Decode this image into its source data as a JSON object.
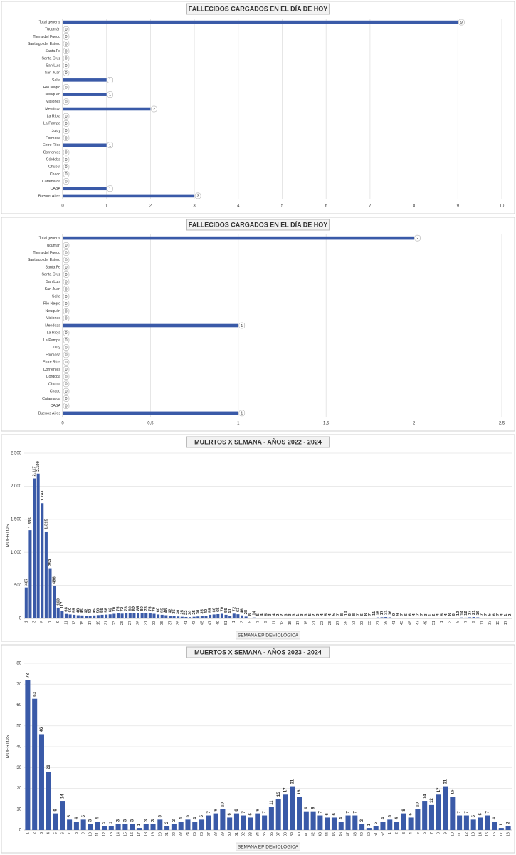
{
  "chart_data": [
    {
      "type": "barh",
      "title": "FALLECIDOS CARGADOS EN EL DÍA DE HOY",
      "color": "#3a5aa8",
      "grid": true,
      "categories": [
        "Total general",
        "Tucumán",
        "Tierra del Fuego",
        "Santiago del Estero",
        "Santa Fe",
        "Santa Cruz",
        "San Luis",
        "San Juan",
        "Salta",
        "Río Negro",
        "Neuquén",
        "Misiones",
        "Mendoza",
        "La Rioja",
        "La Pampa",
        "Jujuy",
        "Formosa",
        "Entre Ríos",
        "Corrientes",
        "Córdoba",
        "Chubut",
        "Chaco",
        "Catamarca",
        "CABA",
        "Buenos Aires"
      ],
      "values": [
        9,
        0,
        0,
        0,
        0,
        0,
        0,
        0,
        1,
        0,
        1,
        0,
        2,
        0,
        0,
        0,
        0,
        1,
        0,
        0,
        0,
        0,
        0,
        1,
        3
      ],
      "xlim": [
        0,
        10
      ],
      "xticks": [
        0,
        1,
        2,
        3,
        4,
        5,
        6,
        7,
        8,
        9,
        10
      ]
    },
    {
      "type": "barh",
      "title": "FALLECIDOS CARGADOS EN EL DÍA DE HOY",
      "color": "#3a5aa8",
      "grid": true,
      "categories": [
        "Total general",
        "Tucumán",
        "Tierra del Fuego",
        "Santiago del Estero",
        "Santa Fe",
        "Santa Cruz",
        "San Luis",
        "San Juan",
        "Salta",
        "Río Negro",
        "Neuquén",
        "Misiones",
        "Mendoza",
        "La Rioja",
        "La Pampa",
        "Jujuy",
        "Formosa",
        "Entre Ríos",
        "Corrientes",
        "Córdoba",
        "Chubut",
        "Chaco",
        "Catamarca",
        "CABA",
        "Buenos Aires"
      ],
      "values": [
        2,
        0,
        0,
        0,
        0,
        0,
        0,
        0,
        0,
        0,
        0,
        0,
        1,
        0,
        0,
        0,
        0,
        0,
        0,
        0,
        0,
        0,
        0,
        0,
        1
      ],
      "xlim": [
        0,
        2.5
      ],
      "xticks": [
        0,
        {
          "value": 0.5,
          "label": "0,5"
        },
        1,
        {
          "value": 1.5,
          "label": "1,5"
        },
        2,
        {
          "value": 2.5,
          "label": "2,5"
        }
      ]
    },
    {
      "type": "bar",
      "title": "MUERTOS X SEMANA - AÑOS 2022 - 2024",
      "color": "#3a5aa8",
      "grid": true,
      "x_label": "SEMANA EPIDEMIOLÓGICA",
      "y_label": "MUERTOS",
      "categories": [
        "1",
        null,
        "3",
        null,
        "5",
        null,
        "7",
        null,
        "9",
        null,
        "11",
        null,
        "13",
        null,
        "15",
        null,
        "17",
        null,
        "19",
        null,
        "21",
        null,
        "23",
        null,
        "25",
        null,
        "27",
        null,
        "29",
        null,
        "31",
        null,
        "33",
        null,
        "35",
        null,
        "37",
        null,
        "39",
        null,
        "41",
        null,
        "43",
        null,
        "45",
        null,
        "47",
        null,
        "49",
        null,
        "51",
        null,
        "1",
        null,
        "3",
        null,
        "5",
        null,
        "7",
        null,
        "9",
        null,
        "11",
        null,
        "13",
        null,
        "15",
        null,
        "17",
        null,
        "19",
        null,
        "21",
        null,
        "23",
        null,
        "25",
        null,
        "27",
        null,
        "29",
        null,
        "31",
        null,
        "33",
        null,
        "35",
        null,
        "37",
        null,
        "39",
        null,
        "41",
        null,
        "43",
        null,
        "45",
        null,
        "47",
        null,
        "49",
        null,
        "51",
        null,
        "1",
        null,
        "3",
        null,
        "5",
        null,
        "7",
        null,
        "9",
        null,
        "11",
        null,
        "13",
        null,
        "15",
        null,
        "17",
        null
      ],
      "values": [
        467,
        1335,
        2117,
        2190,
        1743,
        1315,
        759,
        496,
        163,
        117,
        68,
        60,
        55,
        48,
        45,
        42,
        40,
        45,
        50,
        55,
        58,
        62,
        70,
        75,
        72,
        78,
        80,
        82,
        85,
        80,
        78,
        75,
        70,
        60,
        55,
        48,
        42,
        35,
        30,
        25,
        22,
        20,
        25,
        30,
        35,
        40,
        55,
        60,
        65,
        70,
        55,
        40,
        72,
        63,
        46,
        28,
        8,
        14,
        5,
        4,
        5,
        3,
        4,
        2,
        2,
        3,
        3,
        3,
        1,
        3,
        3,
        5,
        2,
        3,
        4,
        5,
        4,
        5,
        7,
        8,
        10,
        6,
        8,
        7,
        6,
        8,
        7,
        11,
        15,
        17,
        21,
        16,
        9,
        9,
        7,
        6,
        6,
        4,
        7,
        7,
        3,
        1,
        2,
        4,
        5,
        4,
        8,
        6,
        10,
        14,
        12,
        17,
        21,
        16,
        7,
        7,
        5,
        6,
        7,
        4,
        1,
        2
      ],
      "value_labels": [
        "467",
        "1.335",
        "2.117",
        "2.190",
        "1.743",
        "1.315",
        "759",
        "496",
        "163",
        "117",
        "68",
        "60",
        "55",
        "48",
        "45",
        "42",
        "40",
        "45",
        "50",
        "55",
        "58",
        "62",
        "70",
        "75",
        "72",
        "78",
        "80",
        "82",
        "85",
        "80",
        "78",
        "75",
        "70",
        "60",
        "55",
        "48",
        "42",
        "35",
        "30",
        "25",
        "22",
        "20",
        "25",
        "30",
        "35",
        "40",
        "55",
        "60",
        "65",
        "70",
        "55",
        "40",
        "72",
        "63",
        "46",
        "28",
        "8",
        "14",
        "5",
        "4",
        "5",
        "3",
        "4",
        "2",
        "2",
        "3",
        "3",
        "3",
        "1",
        "3",
        "3",
        "5",
        "2",
        "3",
        "4",
        "5",
        "4",
        "5",
        "7",
        "8",
        "10",
        "6",
        "8",
        "7",
        "6",
        "8",
        "7",
        "11",
        "15",
        "17",
        "21",
        "16",
        "9",
        "9",
        "7",
        "6",
        "6",
        "4",
        "7",
        "7",
        "3",
        "1",
        "2",
        "4",
        "5",
        "4",
        "8",
        "6",
        "10",
        "14",
        "12",
        "17",
        "21",
        "16",
        "7",
        "7",
        "5",
        "6",
        "7",
        "4",
        "1",
        "2"
      ],
      "ylim": [
        0,
        2500
      ],
      "yticks": [
        0,
        500,
        {
          "value": 1000,
          "label": "1.000"
        },
        {
          "value": 1500,
          "label": "1.500"
        },
        {
          "value": 2000,
          "label": "2.000"
        },
        {
          "value": 2500,
          "label": "2.500"
        }
      ]
    },
    {
      "type": "bar",
      "title": "MUERTOS X SEMANA - AÑOS 2023 - 2024",
      "color": "#3a5aa8",
      "grid": true,
      "x_label": "SEMANA EPIDEMIOLÓGICA",
      "y_label": "MUERTOS",
      "categories": [
        "1",
        "2",
        "3",
        "4",
        "5",
        "6",
        "7",
        "8",
        "9",
        "10",
        "11",
        "12",
        "13",
        "14",
        "15",
        "16",
        "17",
        "18",
        "19",
        "20",
        "21",
        "22",
        "23",
        "24",
        "25",
        "26",
        "27",
        "28",
        "29",
        "30",
        "31",
        "32",
        "33",
        "34",
        "35",
        "36",
        "37",
        "38",
        "39",
        "40",
        "41",
        "42",
        "43",
        "44",
        "45",
        "46",
        "47",
        "48",
        "49",
        "50",
        "51",
        "52",
        "1",
        "2",
        "3",
        "4",
        "5",
        "6",
        "7",
        "8",
        "9",
        "10",
        "11",
        "12",
        "13",
        "14",
        "15",
        "16",
        "17",
        "18"
      ],
      "values": [
        72,
        63,
        46,
        28,
        8,
        14,
        5,
        4,
        5,
        3,
        4,
        2,
        2,
        3,
        3,
        3,
        1,
        3,
        3,
        5,
        2,
        3,
        4,
        5,
        4,
        5,
        7,
        8,
        10,
        6,
        8,
        7,
        6,
        8,
        7,
        11,
        15,
        17,
        21,
        16,
        9,
        9,
        7,
        6,
        6,
        4,
        7,
        7,
        3,
        1,
        2,
        4,
        5,
        4,
        8,
        6,
        10,
        14,
        12,
        17,
        21,
        16,
        7,
        7,
        5,
        6,
        7,
        4,
        1,
        2
      ],
      "ylim": [
        0,
        80
      ],
      "yticks": [
        0,
        10,
        20,
        30,
        40,
        50,
        60,
        70,
        80
      ]
    }
  ]
}
